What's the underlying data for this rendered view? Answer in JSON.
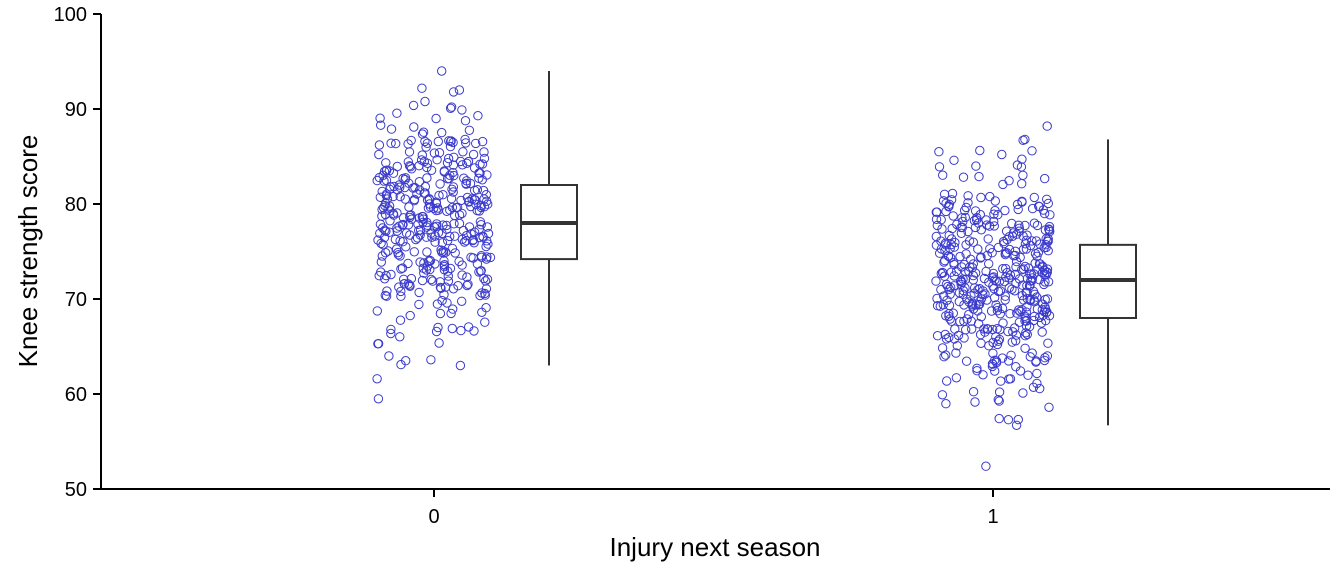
{
  "chart_data": {
    "type": "scatter",
    "subtype": "jittered strip plot with boxplots",
    "xlabel": "Injury next season",
    "ylabel": "Knee strength score",
    "categories": [
      "0",
      "1"
    ],
    "ylim": [
      50,
      100
    ],
    "yticks": [
      50,
      60,
      70,
      80,
      90,
      100
    ],
    "grid": false,
    "point_color": "#3a3acc",
    "box_color": "#333333",
    "groups": [
      {
        "category": "0",
        "box": {
          "min": 63,
          "q1": 74.2,
          "median": 78,
          "q3": 82,
          "max": 94
        },
        "outlier_points": [
          94,
          92,
          91.8,
          90.2,
          89.9,
          89.3,
          89,
          88.3,
          67,
          66.8,
          65.3,
          64,
          63.6,
          63.1,
          63,
          61.6,
          59.5
        ],
        "n_points": 400,
        "point_mean": 78.2,
        "point_sd": 5.6
      },
      {
        "category": "1",
        "box": {
          "min": 56.7,
          "q1": 68,
          "median": 72,
          "q3": 75.7,
          "max": 86.8
        },
        "outlier_points": [
          88.2,
          86.8,
          86.7,
          85.6,
          84.6,
          84.1,
          83.9,
          60.7,
          59.4,
          58.6,
          57.3,
          56.7,
          52.4
        ],
        "n_points": 450,
        "point_mean": 71.9,
        "point_sd": 5.7
      }
    ]
  }
}
